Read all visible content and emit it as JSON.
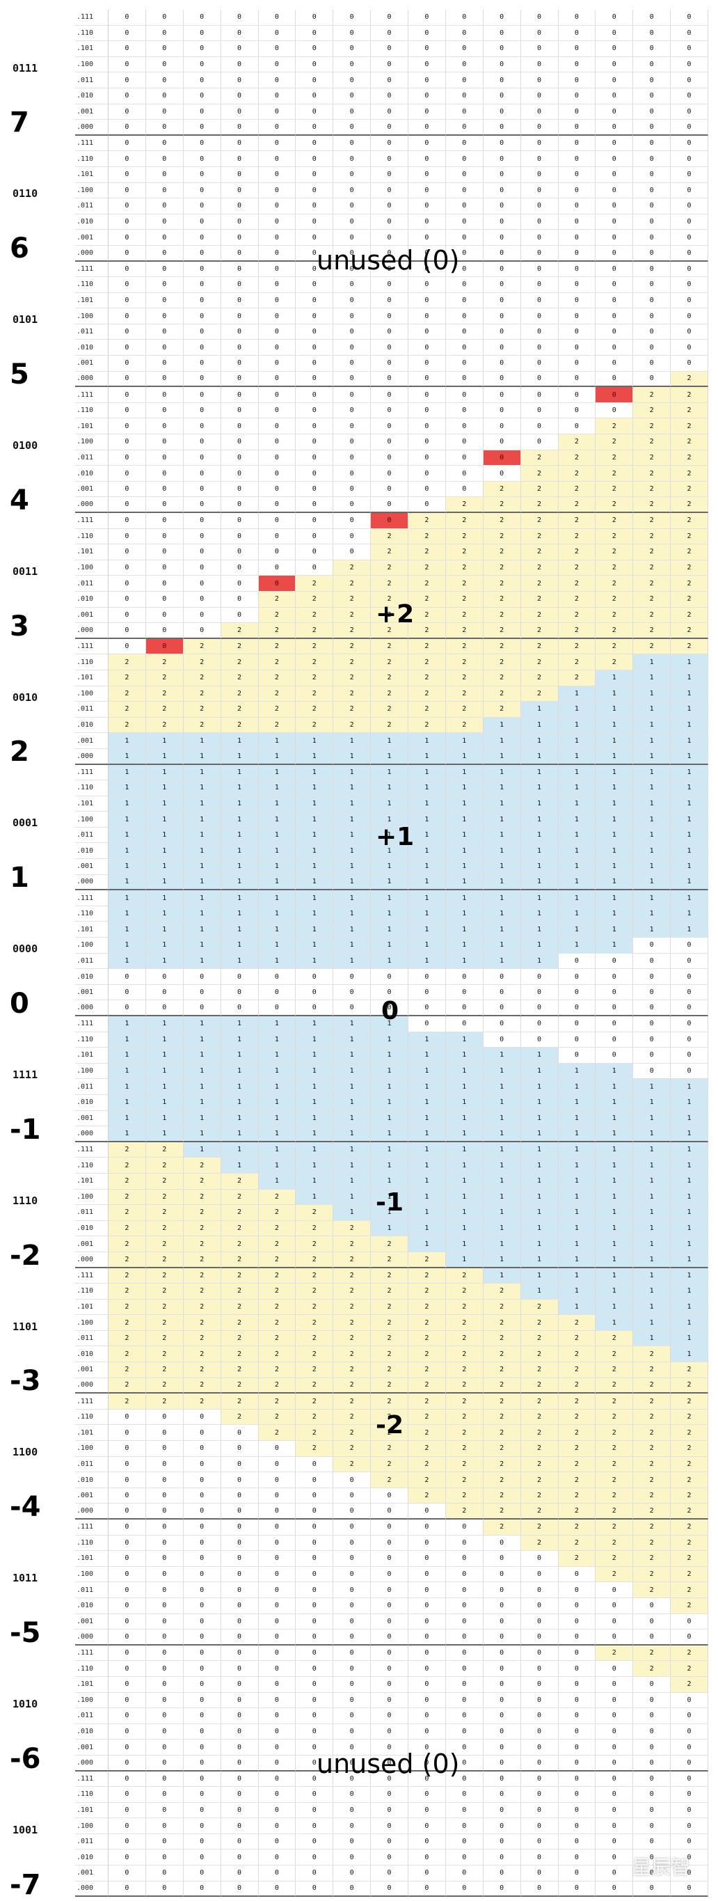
{
  "groups": [
    {
      "code": "0111",
      "num": "7"
    },
    {
      "code": "0110",
      "num": "6"
    },
    {
      "code": "0101",
      "num": "5"
    },
    {
      "code": "0100",
      "num": "4"
    },
    {
      "code": "0011",
      "num": "3"
    },
    {
      "code": "0010",
      "num": "2"
    },
    {
      "code": "0001",
      "num": "1"
    },
    {
      "code": "0000",
      "num": "0"
    },
    {
      "code": "1111",
      "num": "-1"
    },
    {
      "code": "1110",
      "num": "-2"
    },
    {
      "code": "1101",
      "num": "-3"
    },
    {
      "code": "1100",
      "num": "-4"
    },
    {
      "code": "1011",
      "num": "-5"
    },
    {
      "code": "1010",
      "num": "-6"
    },
    {
      "code": "1001",
      "num": "-7"
    }
  ],
  "sub_rows": [
    ".111",
    ".110",
    ".101",
    ".100",
    ".011",
    ".010",
    ".001",
    ".000"
  ],
  "columns": 16,
  "highlight_cells": [
    [
      24,
      13
    ],
    [
      28,
      10
    ],
    [
      32,
      7
    ],
    [
      36,
      4
    ],
    [
      40,
      1
    ]
  ],
  "zone_labels": {
    "unused_top": "unused (0)",
    "plus2": "+2",
    "plus1": "+1",
    "zero": "0",
    "minus1": "-1",
    "minus2": "-2",
    "unused_bottom": "unused (0)"
  },
  "watermark": "星辰智",
  "colors": {
    "one": "#cfe8f4",
    "two": "#fbf5c8",
    "highlight": "#ea4a48"
  }
}
